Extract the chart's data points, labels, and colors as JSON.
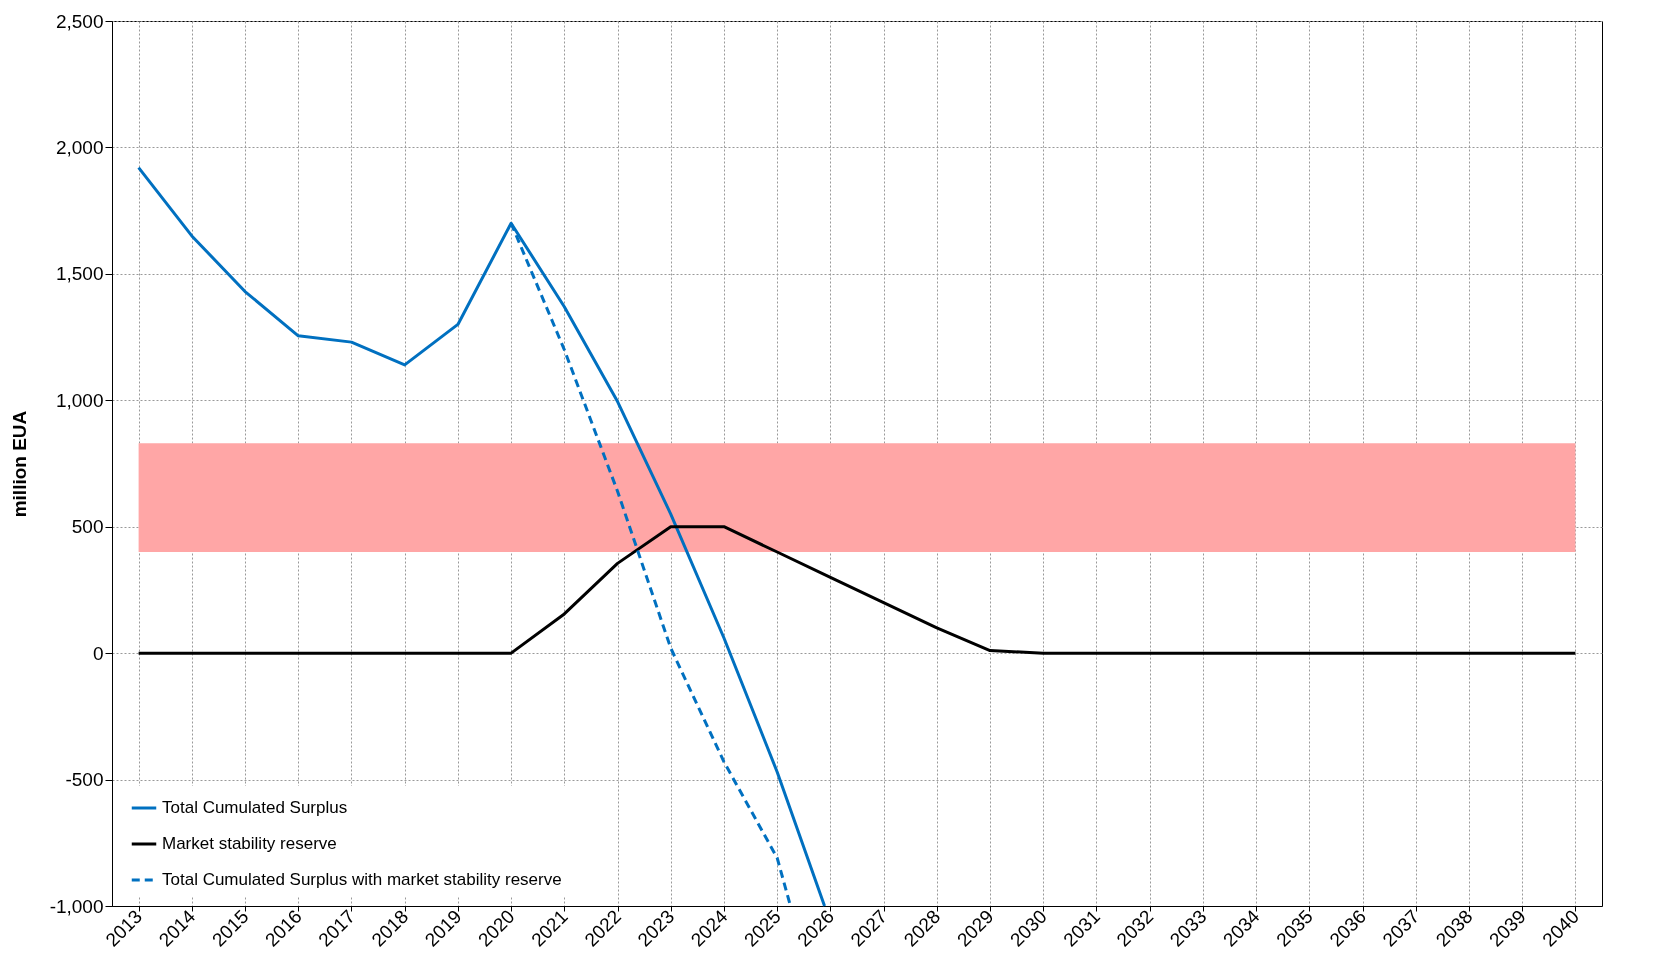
{
  "chart_data": {
    "type": "line",
    "ylabel": "million EUA",
    "x": [
      2013,
      2014,
      2015,
      2016,
      2017,
      2018,
      2019,
      2020,
      2021,
      2022,
      2023,
      2024,
      2025,
      2026,
      2027,
      2028,
      2029,
      2030,
      2031,
      2032,
      2033,
      2034,
      2035,
      2036,
      2037,
      2038,
      2039,
      2040
    ],
    "series": [
      {
        "name": "Total Cumulated Surplus",
        "color": "#0070c0",
        "line_style": "solid",
        "x": [
          2013,
          2014,
          2015,
          2016,
          2017,
          2018,
          2019,
          2020,
          2021,
          2022,
          2023,
          2024,
          2025,
          2025.89
        ],
        "values": [
          1920,
          1650,
          1430,
          1255,
          1230,
          1140,
          1300,
          1700,
          1370,
          995,
          550,
          60,
          -470,
          -1000
        ]
      },
      {
        "name": "Market stability reserve",
        "color": "#000000",
        "line_style": "solid",
        "values": [
          0,
          0,
          0,
          0,
          0,
          0,
          0,
          0,
          155,
          355,
          500,
          500,
          400,
          300,
          200,
          100,
          10,
          0,
          0,
          0,
          0,
          0,
          0,
          0,
          0,
          0,
          0,
          0
        ]
      },
      {
        "name": "Total Cumulated Surplus with market stability reserve",
        "color": "#0070c0",
        "line_style": "dashed",
        "x": [
          2020,
          2021,
          2022,
          2023,
          2024,
          2025,
          2025.25
        ],
        "values": [
          1700,
          1200,
          640,
          20,
          -430,
          -810,
          -1000
        ]
      }
    ],
    "bands": [
      {
        "axis": "y",
        "from": 400,
        "to": 830,
        "color": "#ffa6a6"
      }
    ],
    "xlim": [
      2012.5,
      2040.5
    ],
    "xticks": [
      2013,
      2014,
      2015,
      2016,
      2017,
      2018,
      2019,
      2020,
      2021,
      2022,
      2023,
      2024,
      2025,
      2026,
      2027,
      2028,
      2029,
      2030,
      2031,
      2032,
      2033,
      2034,
      2035,
      2036,
      2037,
      2038,
      2039,
      2040
    ],
    "ylim": [
      -1000,
      2500
    ],
    "yticks": [
      {
        "value": -1000,
        "label": "-1,000"
      },
      -500,
      0,
      500,
      {
        "value": 1000,
        "label": "1,000"
      },
      {
        "value": 1500,
        "label": "1,500"
      },
      {
        "value": 2000,
        "label": "2,000"
      },
      {
        "value": 2500,
        "label": "2,500"
      }
    ],
    "grid": true,
    "legend": "bottom left",
    "marker": "none"
  }
}
